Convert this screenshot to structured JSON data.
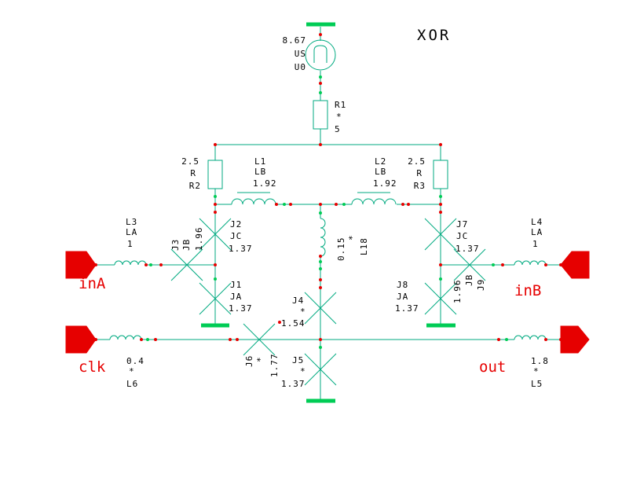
{
  "title": "XOR",
  "source": {
    "value": "8.67",
    "name": "US",
    "id": "U0"
  },
  "resistors": {
    "r1": {
      "name": "R1",
      "value": "*",
      "extra": "5"
    },
    "r2": {
      "value": "2.5",
      "type": "R",
      "name": "R2"
    },
    "r3": {
      "value": "2.5",
      "type": "R",
      "name": "R3"
    }
  },
  "inductors": {
    "l1": {
      "name": "L1",
      "type": "LB",
      "value": "1.92"
    },
    "l2": {
      "name": "L2",
      "type": "LB",
      "value": "1.92"
    },
    "l3": {
      "name": "L3",
      "type": "LA",
      "value": "1"
    },
    "l4": {
      "name": "L4",
      "type": "LA",
      "value": "1"
    },
    "l5": {
      "value": "1.8",
      "star": "*",
      "name": "L5"
    },
    "l6": {
      "value": "0.4",
      "star": "*",
      "name": "L6"
    },
    "l18": {
      "value": "0.15",
      "star": "*",
      "name": "L18"
    }
  },
  "junctions": {
    "j1": {
      "name": "J1",
      "type": "JA",
      "value": "1.37"
    },
    "j2": {
      "name": "J2",
      "type": "JC",
      "value": "1.37"
    },
    "j3": {
      "name": "J3",
      "type": "JB",
      "value": "1.96"
    },
    "j4": {
      "name": "J4",
      "type": "*",
      "value": "1.54"
    },
    "j5": {
      "name": "J5",
      "type": "*",
      "value": "1.37"
    },
    "j6": {
      "name": "J6",
      "type": "*",
      "value": "1.77"
    },
    "j7": {
      "name": "J7",
      "type": "JC",
      "value": "1.37"
    },
    "j8": {
      "name": "J8",
      "type": "JA",
      "value": "1.37"
    },
    "j9": {
      "name": "J9",
      "type": "JB",
      "value": "1.96"
    }
  },
  "ports": {
    "ina": "inA",
    "inb": "inB",
    "clk": "clk",
    "out": "out"
  },
  "colors": {
    "wire": "#00aa80",
    "ground": "#00cc55",
    "node": "#e60000",
    "port": "#e60000"
  }
}
